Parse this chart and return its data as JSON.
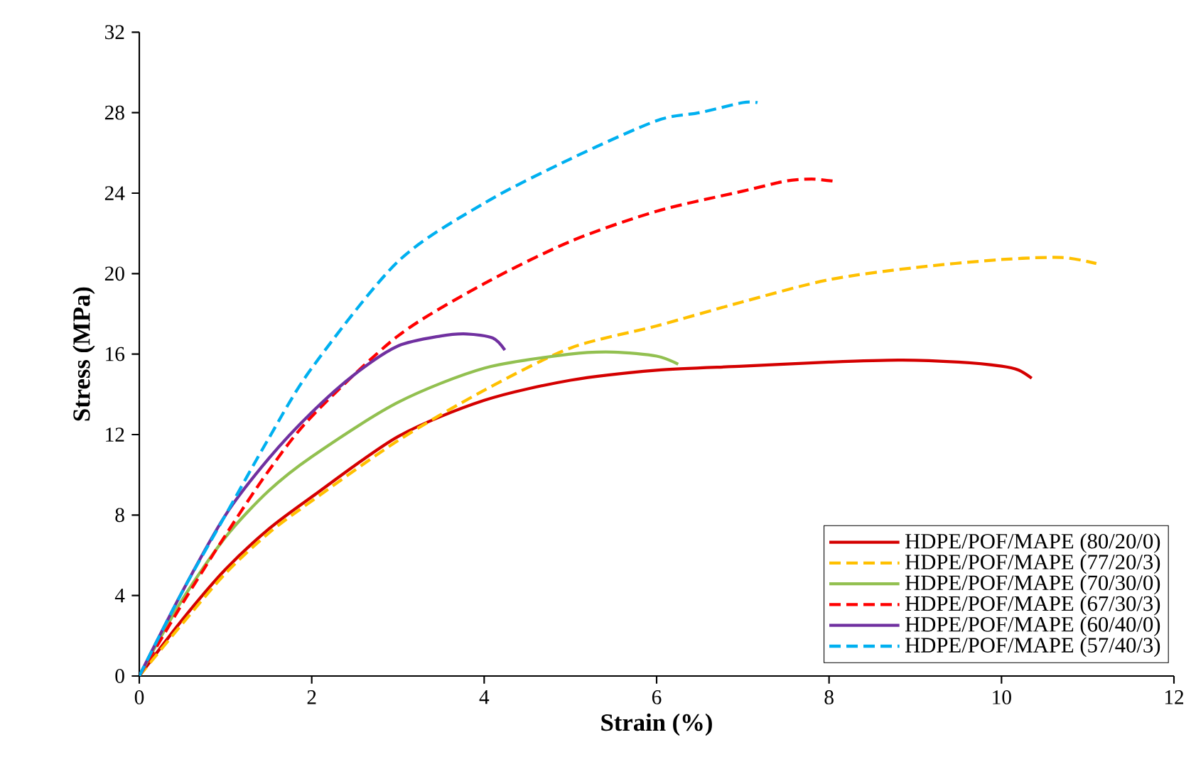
{
  "chart_data": {
    "type": "line",
    "xlabel": "Strain (%)",
    "ylabel": "Stress (MPa)",
    "xlim": [
      0,
      12
    ],
    "ylim": [
      0,
      32
    ],
    "xticks": [
      0,
      2,
      4,
      6,
      8,
      10,
      12
    ],
    "yticks": [
      0,
      4,
      8,
      12,
      16,
      20,
      24,
      28,
      32
    ],
    "grid": false,
    "legend": "bottom right",
    "marker": "none",
    "series": [
      {
        "name": "HDPE/POF/MAPE (80/20/0)",
        "color": "#d40000",
        "line_style": "solid",
        "x": [
          0,
          0.5,
          1,
          1.5,
          2,
          3,
          4,
          5,
          6,
          7,
          8,
          8.8,
          9.5,
          10,
          10.2,
          10.35
        ],
        "values": [
          0,
          2.8,
          5.3,
          7.3,
          8.9,
          11.9,
          13.7,
          14.7,
          15.2,
          15.4,
          15.6,
          15.7,
          15.6,
          15.4,
          15.2,
          14.8
        ]
      },
      {
        "name": "HDPE/POF/MAPE (77/20/3)",
        "color": "#ffc000",
        "line_style": "dashed",
        "x": [
          0,
          0.5,
          1,
          1.5,
          2,
          3,
          4,
          5,
          6,
          7,
          8,
          9,
          10,
          10.7,
          11.1
        ],
        "values": [
          0,
          2.6,
          5.1,
          7.1,
          8.7,
          11.7,
          14.2,
          16.3,
          17.4,
          18.6,
          19.7,
          20.3,
          20.7,
          20.8,
          20.5
        ]
      },
      {
        "name": "HDPE/POF/MAPE (70/30/0)",
        "color": "#92c050",
        "line_style": "solid",
        "x": [
          0,
          0.5,
          1,
          1.5,
          2,
          3,
          4,
          5,
          5.5,
          6,
          6.25
        ],
        "values": [
          0,
          3.8,
          6.9,
          9.2,
          10.9,
          13.6,
          15.3,
          16.0,
          16.1,
          15.9,
          15.5
        ]
      },
      {
        "name": "HDPE/POF/MAPE (67/30/3)",
        "color": "#ff0000",
        "line_style": "dashed",
        "x": [
          0,
          0.5,
          1,
          1.5,
          2,
          3,
          4,
          5,
          6,
          7,
          7.5,
          7.8,
          8.04
        ],
        "values": [
          0,
          3.6,
          7.0,
          10.2,
          12.9,
          16.9,
          19.5,
          21.6,
          23.1,
          24.1,
          24.6,
          24.7,
          24.6
        ]
      },
      {
        "name": "HDPE/POF/MAPE (60/40/0)",
        "color": "#7030a0",
        "line_style": "solid",
        "x": [
          0,
          0.5,
          1,
          1.5,
          2,
          2.5,
          3,
          3.5,
          3.8,
          4.1,
          4.24
        ],
        "values": [
          0,
          4.2,
          8.0,
          10.8,
          13.1,
          15.0,
          16.4,
          16.9,
          17.0,
          16.8,
          16.2
        ]
      },
      {
        "name": "HDPE/POF/MAPE (57/40/3)",
        "color": "#00b0f0",
        "line_style": "dashed",
        "x": [
          0,
          0.5,
          1,
          1.5,
          2,
          3,
          4,
          5,
          6,
          6.5,
          7,
          7.17
        ],
        "values": [
          0,
          4.2,
          8.0,
          11.8,
          15.3,
          20.6,
          23.5,
          25.7,
          27.6,
          28.0,
          28.5,
          28.5
        ]
      }
    ]
  }
}
